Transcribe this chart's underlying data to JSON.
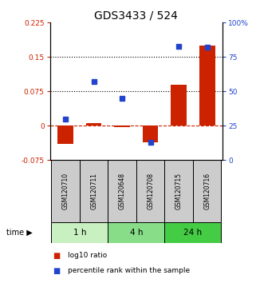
{
  "title": "GDS3433 / 524",
  "samples": [
    "GSM120710",
    "GSM120711",
    "GSM120648",
    "GSM120708",
    "GSM120715",
    "GSM120716"
  ],
  "log10_ratio": [
    -0.04,
    0.005,
    -0.003,
    -0.036,
    0.09,
    0.175
  ],
  "percentile_rank": [
    30,
    57,
    45,
    13,
    83,
    82
  ],
  "time_groups": [
    {
      "label": "1 h",
      "start": 0,
      "end": 2,
      "color": "#c8f0c0"
    },
    {
      "label": "4 h",
      "start": 2,
      "end": 4,
      "color": "#88dd88"
    },
    {
      "label": "24 h",
      "start": 4,
      "end": 6,
      "color": "#44cc44"
    }
  ],
  "left_ylim": [
    -0.075,
    0.225
  ],
  "right_ylim": [
    0,
    100
  ],
  "left_yticks": [
    -0.075,
    0,
    0.075,
    0.15,
    0.225
  ],
  "right_yticks": [
    0,
    25,
    50,
    75,
    100
  ],
  "hlines": [
    0.075,
    0.15
  ],
  "bar_color": "#cc2200",
  "dot_color": "#2244cc",
  "zero_line_color": "#cc2200",
  "sample_box_color": "#cccccc",
  "legend_bar_label": "log10 ratio",
  "legend_dot_label": "percentile rank within the sample",
  "time_label": "time"
}
